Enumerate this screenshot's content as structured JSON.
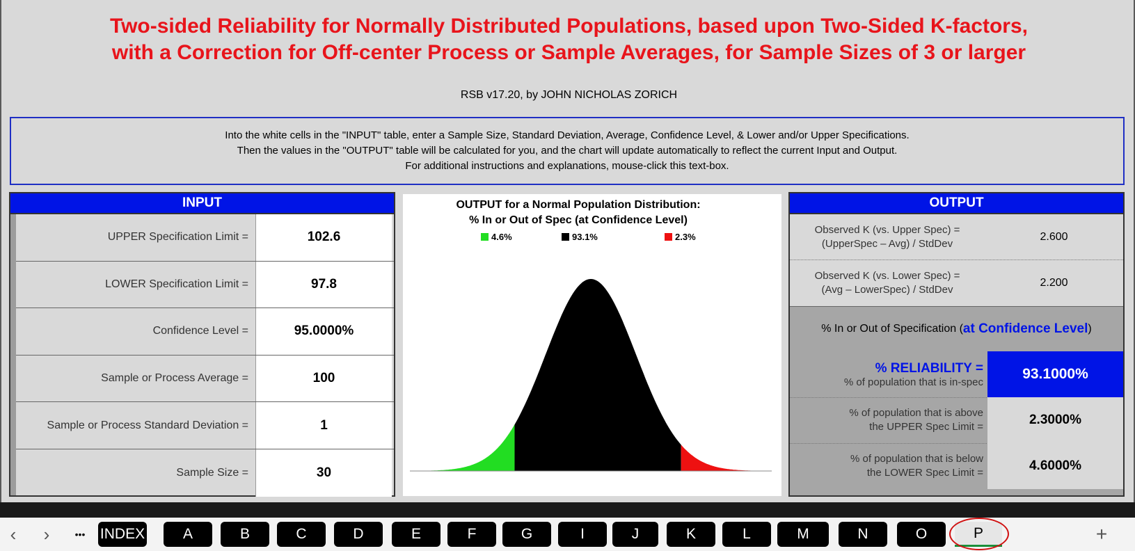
{
  "header": {
    "title_line1": "Two-sided Reliability for Normally Distributed Populations, based upon Two-Sided K-factors,",
    "title_line2": "with a Correction for Off-center Process or Sample Averages, for Sample Sizes of 3 or larger",
    "author": "RSB v17.20, by  JOHN  NICHOLAS  ZORICH"
  },
  "instructions": {
    "line1": "Into the white cells in the \"INPUT\" table, enter a Sample Size, Standard Deviation, Average, Confidence Level, & Lower and/or Upper Specifications.",
    "line2": "Then the values in the \"OUTPUT\" table will be calculated for you, and the chart will update automatically to reflect the current Input and Output.",
    "line3": "For additional instructions and explanations, mouse-click this text-box."
  },
  "input": {
    "header": "INPUT",
    "rows": [
      {
        "label": "UPPER  Specification Limit =",
        "value": "102.6"
      },
      {
        "label": "LOWER  Specification Limit =",
        "value": "97.8"
      },
      {
        "label": "Confidence Level =",
        "value": "95.0000%"
      },
      {
        "label": "Sample or Process Average =",
        "value": "100"
      },
      {
        "label": "Sample or Process Standard Deviation =",
        "value": "1"
      },
      {
        "label": "Sample Size =",
        "value": "30"
      }
    ]
  },
  "chart_data": {
    "type": "area",
    "title": "OUTPUT for a Normal Population Distribution:",
    "subtitle": "% In or Out of Spec (at Confidence Level)",
    "legend": [
      {
        "label": "4.6%",
        "color": "#22dd22"
      },
      {
        "label": "93.1%",
        "color": "#000000"
      },
      {
        "label": "2.3%",
        "color": "#ee1111"
      }
    ],
    "legend_placement": "top",
    "regions": [
      {
        "name": "below-lower",
        "x_from": -4.0,
        "x_to": -1.685,
        "color": "#22dd22"
      },
      {
        "name": "in-spec",
        "x_from": -1.685,
        "x_to": 1.995,
        "color": "#000000"
      },
      {
        "name": "above-upper",
        "x_from": 1.995,
        "x_to": 4.0,
        "color": "#ee1111"
      }
    ],
    "xlim": [
      -4.0,
      4.0
    ],
    "grid": false
  },
  "output": {
    "header": "OUTPUT",
    "k_upper_label1": "Observed K  (vs. Upper Spec) =",
    "k_upper_label2": "(UpperSpec – Avg) / StdDev",
    "k_upper_value": "2.600",
    "k_lower_label1": "Observed K  (vs. Lower Spec) =",
    "k_lower_label2": "(Avg – LowerSpec) / StdDev",
    "k_lower_value": "2.200",
    "section_label": "% In or Out of Specification (",
    "section_highlight": "at Confidence Level",
    "section_close": ")",
    "reliability_label": "% RELIABILITY =",
    "reliability_sub": "% of population that is in-spec",
    "reliability_value": "93.1000%",
    "above_label1": "% of population that is above",
    "above_label2": "the UPPER Spec Limit =",
    "above_value": "2.3000%",
    "below_label1": "% of population that is below",
    "below_label2": "the LOWER Spec Limit =",
    "below_value": "4.6000%"
  },
  "tabs": {
    "prev": "‹",
    "next": "›",
    "more": "•••",
    "add": "+",
    "items": [
      "INDEX",
      "A",
      "B",
      "C",
      "D",
      "E",
      "F",
      "G",
      "I",
      "J",
      "K",
      "L",
      "M",
      "N",
      "O",
      "P"
    ],
    "active": "P",
    "active_color": "#1a8f3a",
    "highlight_circle_color": "#d01010"
  }
}
